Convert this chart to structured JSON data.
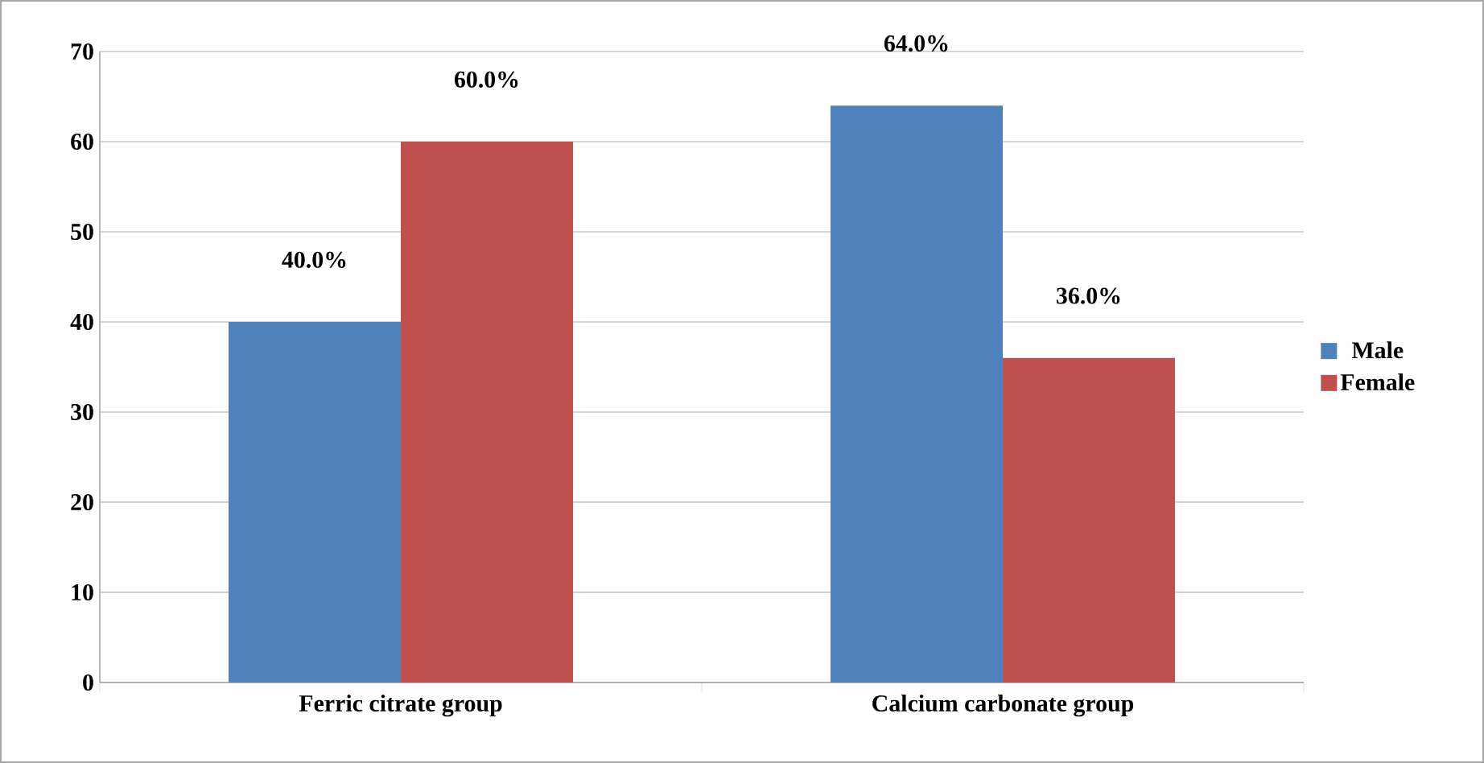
{
  "chart_data": {
    "type": "bar",
    "categories": [
      "Ferric citrate group",
      "Calcium carbonate group"
    ],
    "series": [
      {
        "name": "Male",
        "color": "#4f81bd",
        "values": [
          40,
          64
        ],
        "value_labels": [
          "40.0%",
          "64.0%"
        ]
      },
      {
        "name": "Female",
        "color": "#c0504d",
        "values": [
          60,
          36
        ],
        "value_labels": [
          "60.0%",
          "36.0%"
        ]
      }
    ],
    "ylim": [
      0,
      70
    ],
    "yticks": [
      0,
      10,
      20,
      30,
      40,
      50,
      60,
      70
    ],
    "grid": "y",
    "legend": "right"
  }
}
